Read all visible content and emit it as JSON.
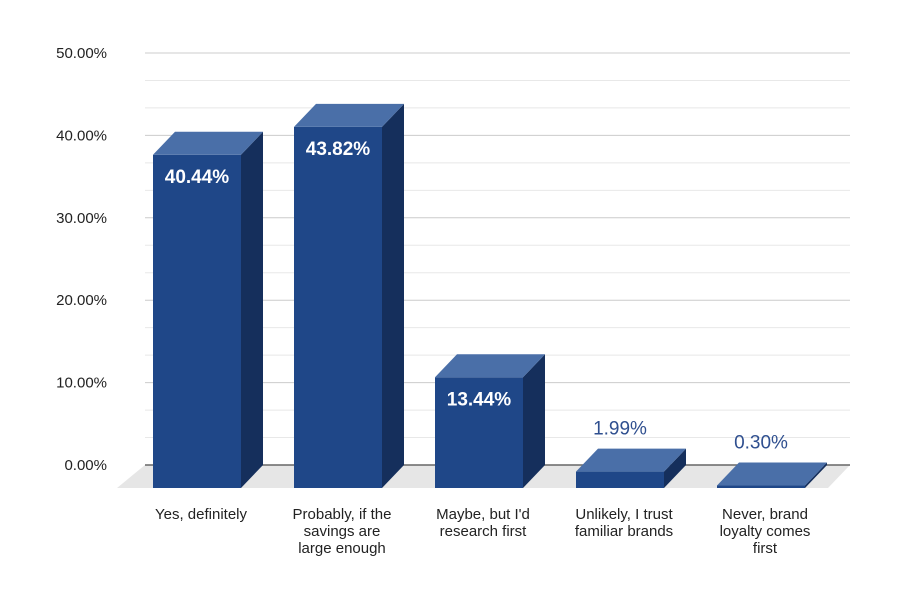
{
  "chart_data": {
    "type": "bar",
    "title": "",
    "xlabel": "",
    "ylabel": "",
    "ylim": [
      0,
      50
    ],
    "ytick_labels": [
      "0.00%",
      "10.00%",
      "20.00%",
      "30.00%",
      "40.00%",
      "50.00%"
    ],
    "categories": [
      [
        "Yes, definitely"
      ],
      [
        "Probably, if the",
        "savings are",
        "large enough"
      ],
      [
        "Maybe, but I'd",
        "research first"
      ],
      [
        "Unlikely, I trust",
        "familiar brands"
      ],
      [
        "Never, brand",
        "loyalty comes",
        "first"
      ]
    ],
    "values": [
      40.44,
      43.82,
      13.44,
      1.99,
      0.3
    ],
    "data_labels": [
      "40.44%",
      "43.82%",
      "13.44%",
      "1.99%",
      "0.30%"
    ],
    "grid": true,
    "legend": "none",
    "colors": {
      "bar_front": "#1f4788",
      "bar_top": "#4a6fa8",
      "bar_side": "#152f5c",
      "floor": "#e6e6e6",
      "grid_major": "#cccccc",
      "grid_minor": "#e8e8e8",
      "zero_line": "#666666"
    }
  }
}
